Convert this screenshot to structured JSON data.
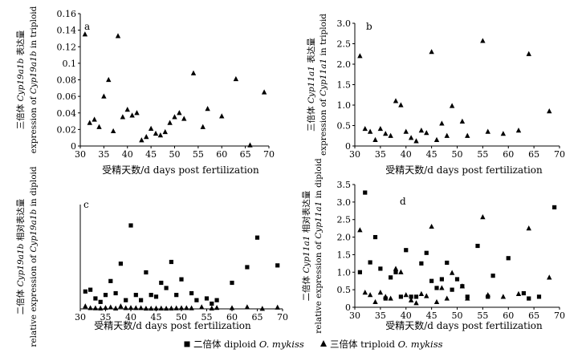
{
  "legend": {
    "diploid": {
      "prefix": "二倍体 diploid ",
      "species": "O. mykiss"
    },
    "triploid": {
      "prefix": "三倍体 triploid ",
      "species": "O. mykiss"
    }
  },
  "chart_data": [
    {
      "type": "scatter",
      "panel": "a",
      "xlabel": "受精天数/d days post fertilization",
      "ylabel_line1": {
        "prefix": "三倍体 ",
        "gene": "Cyp19a1b",
        "suffix": " 表达量"
      },
      "ylabel_line2": {
        "prefix": "expression of ",
        "gene": "Cyp19a1b",
        "suffix": " in triploid"
      },
      "xlim": [
        30,
        70
      ],
      "ylim": [
        0,
        0.16
      ],
      "xticks": [
        30,
        35,
        40,
        45,
        50,
        55,
        60,
        65,
        70
      ],
      "yticks": [
        0,
        0.02,
        0.04,
        0.06,
        0.08,
        0.1,
        0.12,
        0.14,
        0.16
      ],
      "ytick_labels": [
        "0",
        "0.02",
        "0.04",
        "0.06",
        "0.08",
        "0.1",
        "0.12",
        "0.14",
        "0.16"
      ],
      "series": [
        {
          "marker": "triangle",
          "points": [
            [
              31,
              0.135
            ],
            [
              32,
              0.028
            ],
            [
              33,
              0.032
            ],
            [
              34,
              0.023
            ],
            [
              35,
              0.06
            ],
            [
              36,
              0.08
            ],
            [
              37,
              0.018
            ],
            [
              38,
              0.133
            ],
            [
              39,
              0.035
            ],
            [
              40,
              0.044
            ],
            [
              41,
              0.037
            ],
            [
              42,
              0.04
            ],
            [
              43,
              0.007
            ],
            [
              44,
              0.011
            ],
            [
              45,
              0.021
            ],
            [
              46,
              0.015
            ],
            [
              47,
              0.013
            ],
            [
              48,
              0.017
            ],
            [
              49,
              0.028
            ],
            [
              50,
              0.035
            ],
            [
              51,
              0.04
            ],
            [
              52,
              0.033
            ],
            [
              54,
              0.088
            ],
            [
              56,
              0.023
            ],
            [
              57,
              0.045
            ],
            [
              60,
              0.036
            ],
            [
              63,
              0.081
            ],
            [
              66,
              0.001
            ],
            [
              69,
              0.065
            ]
          ]
        }
      ]
    },
    {
      "type": "scatter",
      "panel": "b",
      "xlabel": "受精天数/d days post fertilization",
      "ylabel_line1": {
        "prefix": "三倍体 ",
        "gene": "Cyp11a1",
        "suffix": " 表达量"
      },
      "ylabel_line2": {
        "prefix": "expression of ",
        "gene": "Cyp11a1",
        "suffix": " in triploid"
      },
      "xlim": [
        30,
        70
      ],
      "ylim": [
        0,
        3.0
      ],
      "xticks": [
        30,
        35,
        40,
        45,
        50,
        55,
        60,
        65,
        70
      ],
      "yticks": [
        0,
        0.5,
        1.0,
        1.5,
        2.0,
        2.5,
        3.0
      ],
      "ytick_labels": [
        "0",
        "0.5",
        "1.0",
        "1.5",
        "2.0",
        "2.5",
        "3.0"
      ],
      "series": [
        {
          "marker": "triangle",
          "points": [
            [
              31,
              2.2
            ],
            [
              32,
              0.42
            ],
            [
              33,
              0.35
            ],
            [
              34,
              0.15
            ],
            [
              35,
              0.42
            ],
            [
              36,
              0.3
            ],
            [
              37,
              0.25
            ],
            [
              38,
              1.1
            ],
            [
              39,
              1.0
            ],
            [
              40,
              0.35
            ],
            [
              41,
              0.2
            ],
            [
              42,
              0.12
            ],
            [
              43,
              0.38
            ],
            [
              44,
              0.32
            ],
            [
              45,
              2.3
            ],
            [
              46,
              0.15
            ],
            [
              47,
              0.55
            ],
            [
              48,
              0.25
            ],
            [
              49,
              0.98
            ],
            [
              51,
              0.6
            ],
            [
              52,
              0.25
            ],
            [
              55,
              2.57
            ],
            [
              56,
              0.35
            ],
            [
              59,
              0.3
            ],
            [
              62,
              0.38
            ],
            [
              64,
              2.25
            ],
            [
              68,
              0.85
            ]
          ]
        }
      ]
    },
    {
      "type": "scatter",
      "panel": "c",
      "xlabel": "受精天数/d days post fertilization",
      "ylabel_line1": {
        "prefix": "二倍体 ",
        "gene": "Cyp19a1b",
        "suffix": " 相对表达量"
      },
      "ylabel_line2": {
        "prefix": "relative expression of ",
        "gene": "Cyp19a1b",
        "suffix": " in diploid"
      },
      "xlim": [
        30,
        70
      ],
      "ylim": [
        0,
        6
      ],
      "xticks": [
        30,
        35,
        40,
        45,
        50,
        55,
        60,
        65,
        70
      ],
      "yticks": [],
      "ytick_labels": [],
      "series": [
        {
          "name_ref": "diploid",
          "marker": "square",
          "points": [
            [
              31,
              1.0
            ],
            [
              32,
              1.1
            ],
            [
              33,
              0.6
            ],
            [
              34,
              0.4
            ],
            [
              35,
              0.8
            ],
            [
              36,
              1.6
            ],
            [
              37,
              0.9
            ],
            [
              38,
              2.6
            ],
            [
              39,
              0.5
            ],
            [
              40,
              4.8
            ],
            [
              41,
              0.8
            ],
            [
              42,
              0.5
            ],
            [
              43,
              2.1
            ],
            [
              44,
              0.8
            ],
            [
              45,
              0.7
            ],
            [
              46,
              1.5
            ],
            [
              47,
              1.2
            ],
            [
              48,
              2.7
            ],
            [
              49,
              0.8
            ],
            [
              50,
              1.7
            ],
            [
              52,
              0.9
            ],
            [
              53,
              0.5
            ],
            [
              55,
              0.6
            ],
            [
              56,
              0.3
            ],
            [
              57,
              0.5
            ],
            [
              60,
              1.5
            ],
            [
              63,
              2.4
            ],
            [
              65,
              4.1
            ],
            [
              69,
              2.5
            ]
          ]
        },
        {
          "name_ref": "triploid",
          "marker": "triangle",
          "points": [
            [
              31,
              0.15
            ],
            [
              32,
              0.05
            ],
            [
              33,
              0.04
            ],
            [
              34,
              0.03
            ],
            [
              35,
              0.06
            ],
            [
              36,
              0.09
            ],
            [
              37,
              0.03
            ],
            [
              38,
              0.15
            ],
            [
              39,
              0.05
            ],
            [
              40,
              0.06
            ],
            [
              41,
              0.05
            ],
            [
              42,
              0.05
            ],
            [
              43,
              0.02
            ],
            [
              44,
              0.02
            ],
            [
              45,
              0.03
            ],
            [
              46,
              0.03
            ],
            [
              47,
              0.02
            ],
            [
              48,
              0.03
            ],
            [
              49,
              0.04
            ],
            [
              50,
              0.05
            ],
            [
              51,
              0.05
            ],
            [
              52,
              0.04
            ],
            [
              54,
              0.1
            ],
            [
              56,
              0.03
            ],
            [
              57,
              0.06
            ],
            [
              60,
              0.05
            ],
            [
              63,
              0.1
            ],
            [
              66,
              0.01
            ],
            [
              69,
              0.08
            ]
          ]
        }
      ]
    },
    {
      "type": "scatter",
      "panel": "d",
      "xlabel": "受精天数/d days post fertilization",
      "ylabel_line1": {
        "prefix": "二倍体 ",
        "gene": "Cyp11a1",
        "suffix": " 相对表达量"
      },
      "ylabel_line2": {
        "prefix": "relative expression of ",
        "gene": "Cyp11a1",
        "suffix": " in diploid"
      },
      "xlim": [
        30,
        70
      ],
      "ylim": [
        0,
        3.5
      ],
      "xticks": [
        30,
        35,
        40,
        45,
        50,
        55,
        60,
        65,
        70
      ],
      "yticks": [
        0,
        0.5,
        1.0,
        1.5,
        2.0,
        2.5,
        3.0,
        3.5
      ],
      "ytick_labels": [
        "0",
        "0.5",
        "1.0",
        "1.5",
        "2.0",
        "2.5",
        "3.0",
        "3.5"
      ],
      "series": [
        {
          "name_ref": "diploid",
          "marker": "square",
          "points": [
            [
              31,
              1.0
            ],
            [
              32,
              3.27
            ],
            [
              33,
              1.28
            ],
            [
              34,
              2.0
            ],
            [
              35,
              1.1
            ],
            [
              36,
              0.25
            ],
            [
              37,
              0.85
            ],
            [
              38,
              1.0
            ],
            [
              39,
              0.3
            ],
            [
              40,
              1.63
            ],
            [
              41,
              0.3
            ],
            [
              42,
              0.3
            ],
            [
              43,
              1.25
            ],
            [
              44,
              1.55
            ],
            [
              45,
              0.75
            ],
            [
              46,
              0.55
            ],
            [
              47,
              0.8
            ],
            [
              48,
              1.27
            ],
            [
              49,
              0.5
            ],
            [
              50,
              0.8
            ],
            [
              51,
              0.6
            ],
            [
              52,
              0.3
            ],
            [
              54,
              1.75
            ],
            [
              56,
              0.3
            ],
            [
              57,
              0.9
            ],
            [
              60,
              1.4
            ],
            [
              63,
              0.4
            ],
            [
              64,
              0.25
            ],
            [
              66,
              0.3
            ],
            [
              69,
              2.85
            ]
          ]
        },
        {
          "name_ref": "triploid",
          "marker": "triangle",
          "points": [
            [
              31,
              2.2
            ],
            [
              32,
              0.42
            ],
            [
              33,
              0.35
            ],
            [
              34,
              0.15
            ],
            [
              35,
              0.42
            ],
            [
              36,
              0.3
            ],
            [
              37,
              0.25
            ],
            [
              38,
              1.1
            ],
            [
              39,
              1.0
            ],
            [
              40,
              0.35
            ],
            [
              41,
              0.2
            ],
            [
              42,
              0.12
            ],
            [
              43,
              0.38
            ],
            [
              44,
              0.32
            ],
            [
              45,
              2.3
            ],
            [
              46,
              0.15
            ],
            [
              47,
              0.55
            ],
            [
              48,
              0.25
            ],
            [
              49,
              0.98
            ],
            [
              51,
              0.6
            ],
            [
              52,
              0.25
            ],
            [
              55,
              2.57
            ],
            [
              56,
              0.35
            ],
            [
              59,
              0.3
            ],
            [
              62,
              0.38
            ],
            [
              64,
              2.25
            ],
            [
              68,
              0.85
            ]
          ]
        }
      ]
    }
  ]
}
